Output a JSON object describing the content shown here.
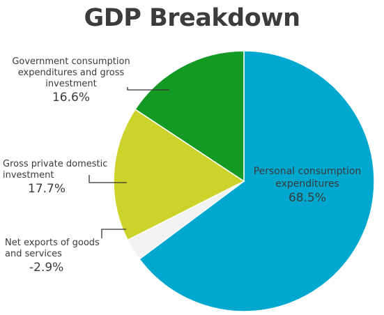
{
  "chart_data": {
    "type": "pie",
    "title": "GDP Breakdown",
    "slices": [
      {
        "label": "Personal consumption expenditures",
        "value": 68.5,
        "value_label": "68.5%",
        "color": "#00a8d0"
      },
      {
        "label": "Net exports of goods and services",
        "value": -2.9,
        "value_label": "-2.9%",
        "color": "#f2f2f2"
      },
      {
        "label": "Gross private domestic investment",
        "value": 17.7,
        "value_label": "17.7%",
        "color": "#ccd42c"
      },
      {
        "label": "Government consumption expenditures and gross investment",
        "value": 16.6,
        "value_label": "16.6%",
        "color": "#149a24"
      }
    ],
    "legend": "none",
    "grid": false
  }
}
